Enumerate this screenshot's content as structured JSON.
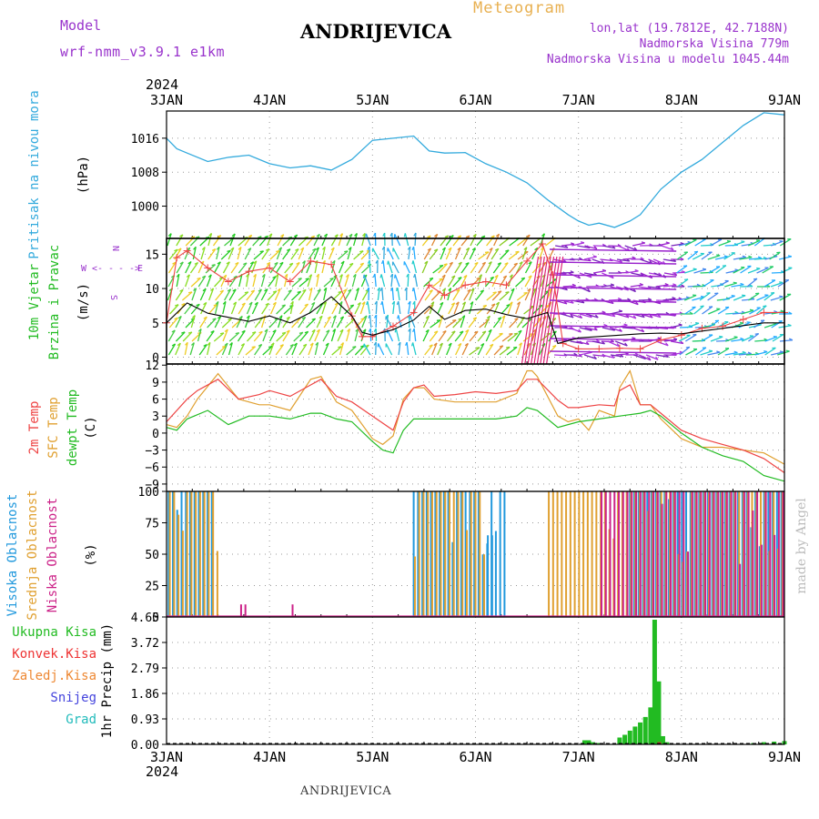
{
  "header": {
    "model_label": "Model",
    "model_name": "wrf-nmm_v3.9.1 e1km",
    "station": "ANDRIJEVICA",
    "product": "Meteogram",
    "lonlat": "lon,lat (19.7812E, 42.7188N)",
    "altitude": "Nadmorska Visina 779m",
    "model_altitude": "Nadmorska Visina u modelu 1045.44m",
    "year": "2024",
    "footer_station": "ANDRIJEVICA",
    "credit": "made by Angel"
  },
  "colors": {
    "pressure": "#33aadd",
    "wind_label": "#22bb22",
    "t2m": "#ee4444",
    "sfc": "#e0a030",
    "dewpt": "#22bb22",
    "high_cloud": "#2299dd",
    "mid_cloud": "#e0a030",
    "low_cloud": "#cc2288",
    "total_precip": "#22bb22",
    "conv_precip": "#ee3333",
    "frozen_precip": "#ee8833",
    "snow": "#4444dd",
    "hail": "#22bbbb",
    "purple_text": "#9933cc",
    "orange_text": "#e8b050"
  },
  "chart_data": [
    {
      "type": "line",
      "panel": "pressure",
      "ylabel_main": "Pritisak na nivou mora",
      "ylabel_unit": "(hPa)",
      "x_unit": "days since 3JAN 2024 00UTC",
      "x_ticks": [
        "3JAN",
        "4JAN",
        "5JAN",
        "6JAN",
        "7JAN",
        "8JAN",
        "9JAN"
      ],
      "yticks": [
        1000,
        1008,
        1016
      ],
      "ylim": [
        992.4,
        1022.4
      ],
      "grid": true,
      "series": [
        {
          "name": "MSLP",
          "x": [
            0,
            0.1,
            0.2,
            0.4,
            0.6,
            0.8,
            1.0,
            1.2,
            1.4,
            1.6,
            1.8,
            2.0,
            2.2,
            2.4,
            2.55,
            2.7,
            2.9,
            3.1,
            3.3,
            3.5,
            3.7,
            3.9,
            4.0,
            4.1,
            4.2,
            4.35,
            4.5,
            4.6,
            4.8,
            5.0,
            5.2,
            5.4,
            5.6,
            5.8,
            6.0
          ],
          "y": [
            1016,
            1013.5,
            1012.5,
            1010.5,
            1011.5,
            1012,
            1010,
            1009,
            1009.5,
            1008.5,
            1011,
            1015.5,
            1016,
            1016.5,
            1013,
            1012.5,
            1012.6,
            1010,
            1008,
            1005.5,
            1001.5,
            998,
            996.5,
            995.5,
            996,
            995,
            996.5,
            998,
            1004,
            1008,
            1011,
            1015,
            1019,
            1022,
            1021.5
          ]
        }
      ]
    },
    {
      "type": "line",
      "panel": "wind",
      "ylabel_main": "10m Vjetar",
      "ylabel_sub": "Brzina i Pravac",
      "ylabel_unit": "(m/s)",
      "compass_labels": {
        "n": "N",
        "s": "S",
        "w": "W",
        "e": "E",
        "left_arrow": "<- -",
        "right_arrow": "- ->"
      },
      "yticks": [
        0,
        5,
        10,
        15
      ],
      "ylim": [
        -1,
        17.3
      ],
      "grid": true,
      "series": [
        {
          "name": "wind speed",
          "x": [
            0,
            0.2,
            0.4,
            0.6,
            0.8,
            1.0,
            1.2,
            1.4,
            1.6,
            1.8,
            1.9,
            2.0,
            2.2,
            2.4,
            2.55,
            2.7,
            2.9,
            3.1,
            3.3,
            3.5,
            3.7,
            3.8,
            4.0,
            4.2,
            4.4,
            4.6,
            4.8,
            5.0,
            5.2,
            5.4,
            5.6,
            5.8,
            6.0
          ],
          "y": [
            5,
            7.9,
            6.4,
            5.8,
            5.2,
            6,
            5,
            6.5,
            8.8,
            6,
            3.6,
            3.2,
            4,
            5.4,
            7.4,
            5.5,
            6.8,
            7,
            6.2,
            5.6,
            6.5,
            2,
            2.8,
            3,
            3.2,
            3.4,
            3.5,
            3.4,
            3.8,
            4.2,
            4.6,
            5,
            5
          ]
        },
        {
          "name": "wind gust",
          "x": [
            0,
            0.1,
            0.2,
            0.4,
            0.6,
            0.8,
            1.0,
            1.2,
            1.4,
            1.6,
            1.8,
            1.9,
            2.0,
            2.2,
            2.4,
            2.55,
            2.7,
            2.9,
            3.1,
            3.3,
            3.5,
            3.65,
            3.75,
            3.85,
            4.0,
            4.2,
            4.4,
            4.6,
            4.8,
            5.0,
            5.2,
            5.4,
            5.6,
            5.8,
            6.0
          ],
          "y": [
            5,
            14.5,
            15.5,
            13,
            11,
            12.5,
            13,
            11,
            14,
            13.5,
            6,
            3,
            3,
            4.5,
            6.5,
            10.5,
            9,
            10.5,
            11,
            10.5,
            14,
            16.5,
            12,
            2,
            1.2,
            1.2,
            1.3,
            1.2,
            2.5,
            3.2,
            4.2,
            4.5,
            5.5,
            6.5,
            6.5
          ]
        }
      ]
    },
    {
      "type": "line",
      "panel": "temperature",
      "ylabel_lines": [
        "2m Temp",
        "SFC Temp",
        "dewpt Temp"
      ],
      "ylabel_unit": "(C)",
      "yticks": [
        -9,
        -6,
        -3,
        0,
        3,
        6,
        9,
        12
      ],
      "ylim": [
        -10.3,
        12.2
      ],
      "grid": true,
      "series": [
        {
          "name": "2m Temp",
          "x": [
            0,
            0.2,
            0.3,
            0.5,
            0.7,
            0.9,
            1.0,
            1.2,
            1.4,
            1.5,
            1.65,
            1.8,
            2.0,
            2.2,
            2.3,
            2.4,
            2.5,
            2.6,
            2.8,
            3.0,
            3.2,
            3.4,
            3.5,
            3.6,
            3.8,
            3.9,
            4.0,
            4.2,
            4.35,
            4.4,
            4.5,
            4.6,
            4.7,
            4.8,
            5.0,
            5.2,
            5.4,
            5.6,
            5.8,
            6.0
          ],
          "y": [
            2,
            6,
            7.5,
            9.5,
            6,
            6.8,
            7.5,
            6.5,
            8.5,
            9.5,
            6.5,
            5.5,
            3,
            0.5,
            5.5,
            8,
            8.5,
            6.5,
            6.8,
            7.3,
            7,
            7.5,
            9.5,
            9.5,
            5.8,
            4.5,
            4.5,
            5,
            4.8,
            7.5,
            8.5,
            5,
            5,
            3.5,
            0.5,
            -1,
            -2,
            -3,
            -4.5,
            -7
          ]
        },
        {
          "name": "SFC Temp",
          "x": [
            0,
            0.1,
            0.2,
            0.3,
            0.5,
            0.7,
            0.9,
            1.0,
            1.2,
            1.4,
            1.5,
            1.65,
            1.8,
            2.0,
            2.1,
            2.2,
            2.3,
            2.4,
            2.5,
            2.6,
            2.8,
            3.0,
            3.2,
            3.4,
            3.5,
            3.55,
            3.6,
            3.8,
            3.9,
            4.0,
            4.1,
            4.2,
            4.35,
            4.4,
            4.5,
            4.6,
            4.7,
            4.8,
            5.0,
            5.2,
            5.4,
            5.6,
            5.8,
            6.0
          ],
          "y": [
            1.5,
            1,
            3,
            6,
            10.5,
            6,
            5,
            5,
            4,
            9.5,
            10,
            5.5,
            4,
            -1,
            -2,
            -0.5,
            6,
            8,
            8,
            6,
            5.5,
            5.5,
            5.5,
            7,
            11,
            11,
            10,
            3,
            2,
            2.5,
            0.5,
            4,
            3,
            8,
            11,
            5,
            5,
            2.5,
            -1,
            -2.5,
            -2.5,
            -3,
            -3.5,
            -5.5
          ]
        },
        {
          "name": "dewpt Temp",
          "x": [
            0,
            0.1,
            0.2,
            0.4,
            0.6,
            0.8,
            1.0,
            1.2,
            1.4,
            1.5,
            1.65,
            1.8,
            2.0,
            2.1,
            2.2,
            2.3,
            2.4,
            2.6,
            2.8,
            3.0,
            3.2,
            3.4,
            3.5,
            3.6,
            3.8,
            4.0,
            4.2,
            4.4,
            4.6,
            4.7,
            4.8,
            5.0,
            5.2,
            5.4,
            5.6,
            5.8,
            6.0
          ],
          "y": [
            1,
            0.5,
            2.5,
            4,
            1.5,
            3,
            3,
            2.5,
            3.5,
            3.5,
            2.5,
            2,
            -1.5,
            -3,
            -3.5,
            0.5,
            2.5,
            2.5,
            2.5,
            2.5,
            2.5,
            3,
            4.5,
            4,
            1,
            2,
            2.5,
            3,
            3.5,
            4,
            3,
            0,
            -2.5,
            -4,
            -5,
            -7.5,
            -8.5
          ]
        }
      ]
    },
    {
      "type": "bar",
      "panel": "clouds",
      "ylabel_lines": [
        "Visoka Oblacnost",
        "Srednja Oblacnost",
        "Niska Oblacnost"
      ],
      "ylabel_unit": "(%)",
      "yticks": [
        0,
        25,
        50,
        75,
        100
      ],
      "ylim": [
        0,
        100
      ],
      "grid": true,
      "series": [
        {
          "name": "Visoka Oblacnost",
          "segments": [
            {
              "from": 0.02,
              "to": 0.45,
              "value": 100
            },
            {
              "from": 2.4,
              "to": 3.3,
              "value": 100
            },
            {
              "from": 3.12,
              "to": 3.2,
              "value": 65
            },
            {
              "from": 4.5,
              "to": 6.0,
              "value": 100
            }
          ]
        },
        {
          "name": "Srednja Oblacnost",
          "segments": [
            {
              "from": 0.02,
              "to": 0.5,
              "value": 100
            },
            {
              "from": 2.4,
              "to": 3.1,
              "value": 100
            },
            {
              "from": 3.7,
              "to": 6.0,
              "value": 100
            }
          ]
        },
        {
          "name": "Niska Oblacnost",
          "segments": [
            {
              "from": 0.7,
              "to": 0.8,
              "value": 10
            },
            {
              "from": 1.2,
              "to": 1.25,
              "value": 10
            },
            {
              "from": 4.2,
              "to": 6.0,
              "value": 100
            }
          ]
        }
      ]
    },
    {
      "type": "bar",
      "panel": "precipitation",
      "ylabel_main": "1hr Precip (mm)",
      "legend": [
        "Ukupna Kisa",
        "Konvek.Kisa",
        "Zaledj.Kisa",
        "Snijeg",
        "Grad"
      ],
      "yticks": [
        0,
        0.93,
        1.86,
        2.79,
        3.72,
        4.65
      ],
      "ylim": [
        0,
        4.65
      ],
      "grid": true,
      "series": [
        {
          "name": "Ukupna Kisa",
          "x": [
            4.06,
            4.1,
            4.14,
            4.2,
            4.4,
            4.45,
            4.5,
            4.55,
            4.6,
            4.65,
            4.7,
            4.74,
            4.78,
            4.82,
            4.86,
            5.7,
            5.8,
            5.9,
            6.0
          ],
          "y": [
            0.15,
            0.15,
            0.08,
            0.05,
            0.25,
            0.35,
            0.5,
            0.65,
            0.8,
            1.0,
            1.35,
            4.55,
            2.3,
            0.3,
            0.08,
            0.05,
            0.08,
            0.1,
            0.12
          ]
        }
      ]
    }
  ]
}
